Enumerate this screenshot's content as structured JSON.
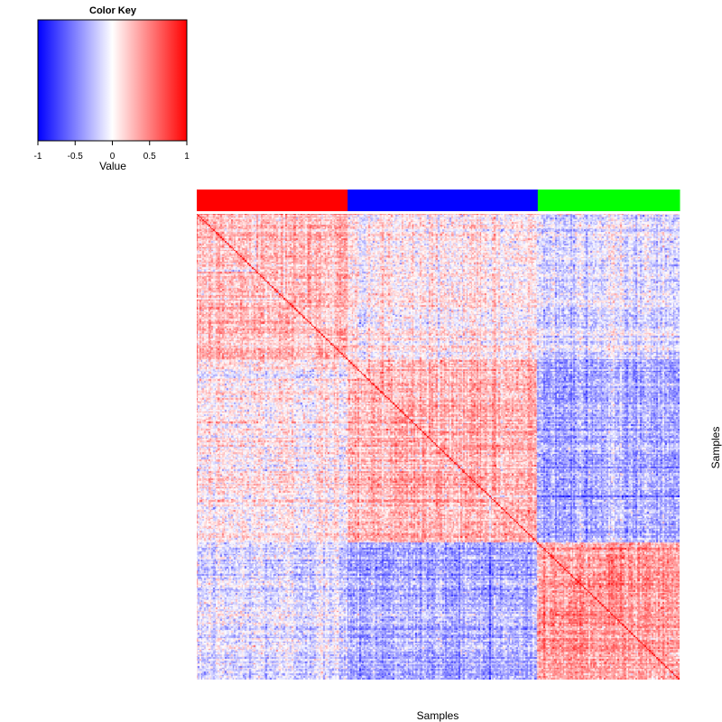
{
  "chart_data": {
    "type": "heatmap",
    "color_key": {
      "title": "Color Key",
      "xlabel": "Value",
      "range": [
        -1,
        1
      ],
      "ticks": [
        "-1",
        "-0.5",
        "0",
        "0.5",
        "1"
      ],
      "colors": {
        "low": "#0000ff",
        "mid": "#ffffff",
        "high": "#ff0000"
      }
    },
    "xlabel": "Samples",
    "ylabel": "Samples",
    "matrix": {
      "n_samples": 320,
      "diagonal_value": 1,
      "note": "symmetric sample-sample correlation matrix"
    },
    "groups": [
      {
        "color": "#ff0000",
        "size": 100
      },
      {
        "color": "#0000ff",
        "size": 126
      },
      {
        "color": "#00ff00",
        "size": 94
      }
    ],
    "block_means": [
      [
        0.25,
        0.05,
        -0.1
      ],
      [
        0.05,
        0.28,
        -0.3
      ],
      [
        -0.1,
        -0.3,
        0.4
      ]
    ]
  }
}
